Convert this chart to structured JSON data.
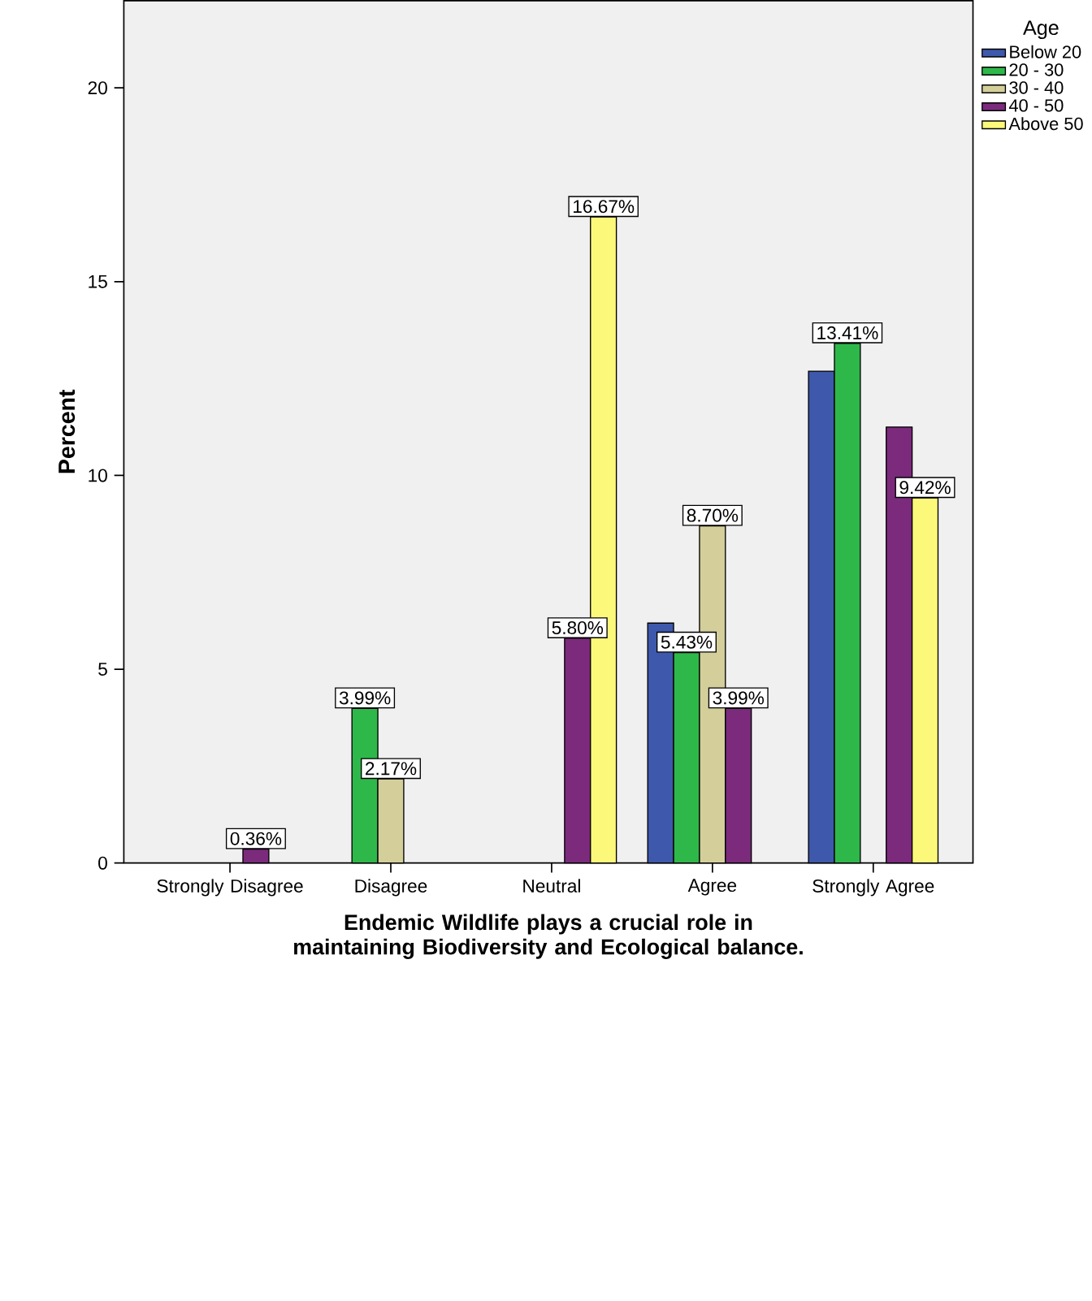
{
  "chart_data": {
    "type": "bar",
    "xlabel": "Endemic Wildlife plays a crucial role in maintaining Biodiversity and Ecological balance.",
    "ylabel": "Percent",
    "legend_title": "Age",
    "legend": "right",
    "categories": [
      "Strongly Disagree",
      "Disagree",
      "Neutral",
      "Agree",
      "Strongly Agree"
    ],
    "ylim": [
      0,
      22.25
    ],
    "yticks": [
      0,
      5,
      10,
      15,
      20
    ],
    "series": [
      {
        "name": "Below 20",
        "color": "#3e58ac",
        "values": [
          null,
          null,
          null,
          6.19,
          12.69
        ],
        "value_labels": [
          null,
          null,
          null,
          null,
          null
        ]
      },
      {
        "name": "20 - 30",
        "color": "#2eb84a",
        "values": [
          null,
          3.99,
          null,
          5.43,
          13.41
        ],
        "value_labels": [
          null,
          "3.99%",
          null,
          "5.43%",
          "13.41%"
        ]
      },
      {
        "name": "30 - 40",
        "color": "#d4cf9a",
        "values": [
          null,
          2.17,
          null,
          8.7,
          null
        ],
        "value_labels": [
          null,
          "2.17%",
          null,
          "8.70%",
          null
        ]
      },
      {
        "name": "40 - 50",
        "color": "#7b2a7c",
        "values": [
          0.36,
          null,
          5.8,
          3.99,
          11.25
        ],
        "value_labels": [
          "0.36%",
          null,
          "5.80%",
          "3.99%",
          null
        ]
      },
      {
        "name": "Above 50",
        "color": "#fbf87a",
        "values": [
          null,
          null,
          16.67,
          null,
          9.42
        ],
        "value_labels": [
          null,
          null,
          "16.67%",
          null,
          "9.42%"
        ]
      }
    ]
  }
}
